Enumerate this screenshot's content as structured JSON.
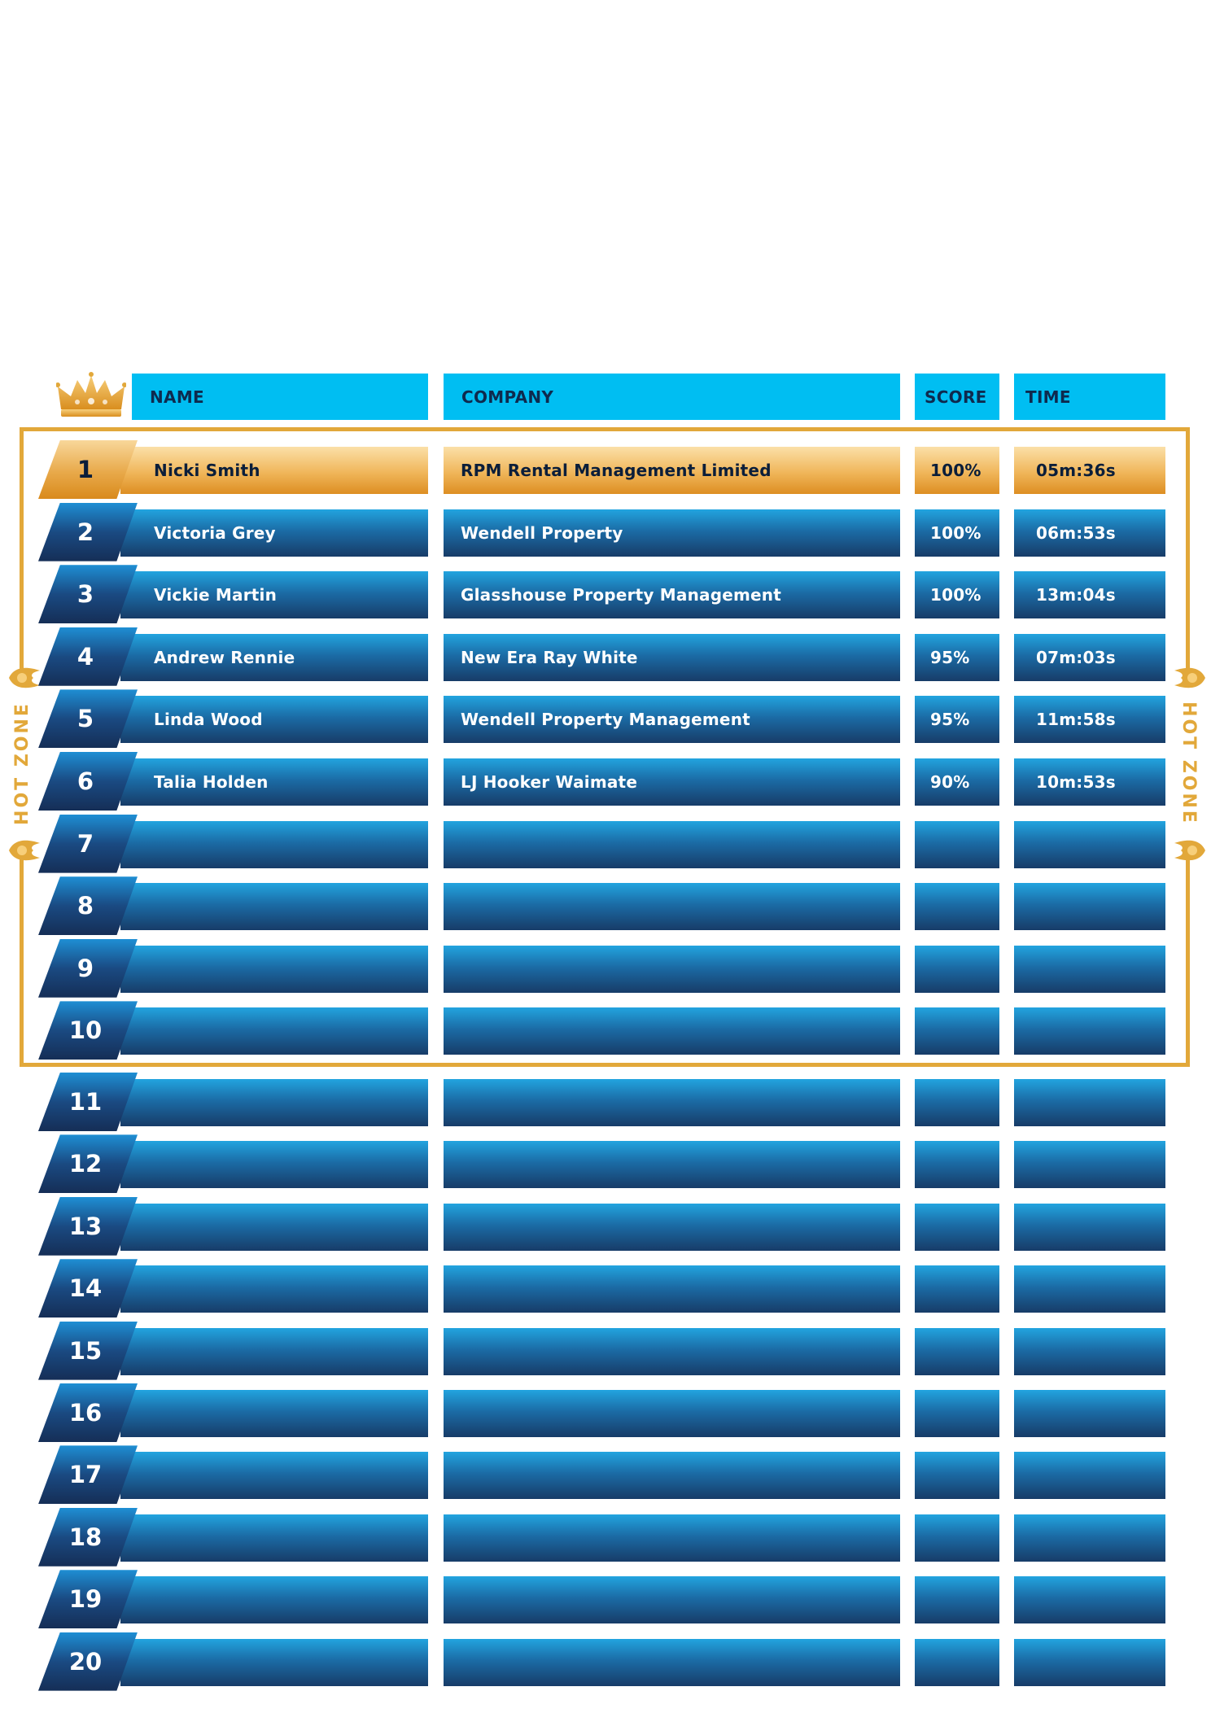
{
  "header": {
    "name": "NAME",
    "company": "COMPANY",
    "score": "SCORE",
    "time": "TIME"
  },
  "hot_zone": {
    "label": "HOT ZONE"
  },
  "icons": {
    "crown": "crown-icon",
    "flame": "flame-icon"
  },
  "colors": {
    "header": "#00bef2",
    "gold": "#e2a83a",
    "row_dark": "#173c68",
    "row_light": "#22a4df"
  },
  "rows": [
    {
      "rank": "1",
      "name": "Nicki Smith",
      "company": "RPM Rental Management Limited",
      "score": "100%",
      "time": "05m:36s"
    },
    {
      "rank": "2",
      "name": "Victoria Grey",
      "company": "Wendell Property",
      "score": "100%",
      "time": "06m:53s"
    },
    {
      "rank": "3",
      "name": "Vickie Martin",
      "company": "Glasshouse Property Management",
      "score": "100%",
      "time": "13m:04s"
    },
    {
      "rank": "4",
      "name": "Andrew Rennie",
      "company": "New Era Ray White",
      "score": "95%",
      "time": "07m:03s"
    },
    {
      "rank": "5",
      "name": "Linda Wood",
      "company": "Wendell Property Management",
      "score": "95%",
      "time": "11m:58s"
    },
    {
      "rank": "6",
      "name": "Talia Holden",
      "company": "LJ Hooker Waimate",
      "score": "90%",
      "time": "10m:53s"
    },
    {
      "rank": "7",
      "name": "",
      "company": "",
      "score": "",
      "time": ""
    },
    {
      "rank": "8",
      "name": "",
      "company": "",
      "score": "",
      "time": ""
    },
    {
      "rank": "9",
      "name": "",
      "company": "",
      "score": "",
      "time": ""
    },
    {
      "rank": "10",
      "name": "",
      "company": "",
      "score": "",
      "time": ""
    },
    {
      "rank": "11",
      "name": "",
      "company": "",
      "score": "",
      "time": ""
    },
    {
      "rank": "12",
      "name": "",
      "company": "",
      "score": "",
      "time": ""
    },
    {
      "rank": "13",
      "name": "",
      "company": "",
      "score": "",
      "time": ""
    },
    {
      "rank": "14",
      "name": "",
      "company": "",
      "score": "",
      "time": ""
    },
    {
      "rank": "15",
      "name": "",
      "company": "",
      "score": "",
      "time": ""
    },
    {
      "rank": "16",
      "name": "",
      "company": "",
      "score": "",
      "time": ""
    },
    {
      "rank": "17",
      "name": "",
      "company": "",
      "score": "",
      "time": ""
    },
    {
      "rank": "18",
      "name": "",
      "company": "",
      "score": "",
      "time": ""
    },
    {
      "rank": "19",
      "name": "",
      "company": "",
      "score": "",
      "time": ""
    },
    {
      "rank": "20",
      "name": "",
      "company": "",
      "score": "",
      "time": ""
    }
  ]
}
